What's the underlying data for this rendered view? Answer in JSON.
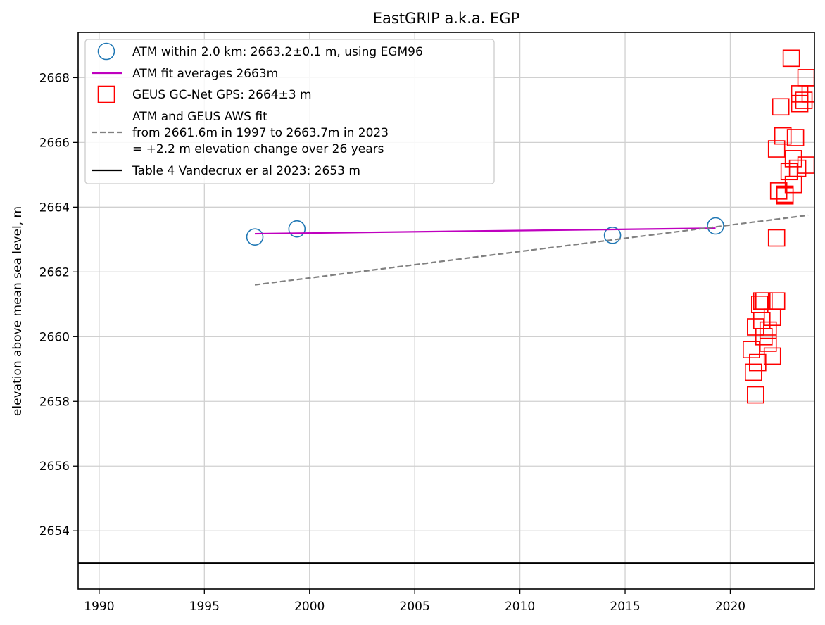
{
  "chart_data": {
    "type": "scatter",
    "title": "EastGRIP a.k.a. EGP",
    "xlabel": "",
    "ylabel": "elevation above mean sea level, m",
    "xlim": [
      1989,
      2024
    ],
    "ylim": [
      2652.2,
      2669.4
    ],
    "xticks": [
      1990,
      1995,
      2000,
      2005,
      2010,
      2015,
      2020
    ],
    "yticks": [
      2654,
      2656,
      2658,
      2660,
      2662,
      2664,
      2666,
      2668
    ],
    "grid": true,
    "legend_position": "upper-left",
    "series": [
      {
        "name": "ATM within 2.0 km: 2663.2±0.1 m, using EGM96",
        "kind": "marker",
        "marker": "circle",
        "color": "#1f77b4",
        "points": [
          [
            1997.4,
            2663.08
          ],
          [
            1999.4,
            2663.33
          ],
          [
            2014.4,
            2663.13
          ],
          [
            2019.3,
            2663.42
          ]
        ]
      },
      {
        "name": "ATM fit averages 2663m",
        "kind": "line",
        "style": "solid",
        "color": "#bf00bf",
        "points": [
          [
            1997.4,
            2663.18
          ],
          [
            2019.3,
            2663.35
          ]
        ]
      },
      {
        "name": "GEUS GC-Net GPS: 2664±3 m",
        "kind": "marker",
        "marker": "square",
        "color": "#ff0000",
        "points": [
          [
            2021.2,
            2658.2
          ],
          [
            2021.1,
            2658.9
          ],
          [
            2021.3,
            2659.2
          ],
          [
            2021.0,
            2659.6
          ],
          [
            2022.0,
            2659.4
          ],
          [
            2021.8,
            2659.8
          ],
          [
            2021.6,
            2660.0
          ],
          [
            2021.2,
            2660.3
          ],
          [
            2021.8,
            2660.2
          ],
          [
            2021.5,
            2660.5
          ],
          [
            2022.0,
            2660.6
          ],
          [
            2021.4,
            2661.0
          ],
          [
            2021.6,
            2661.1
          ],
          [
            2021.5,
            2661.1
          ],
          [
            2022.2,
            2661.1
          ],
          [
            2022.2,
            2663.05
          ],
          [
            2022.6,
            2664.35
          ],
          [
            2022.3,
            2664.5
          ],
          [
            2022.6,
            2664.4
          ],
          [
            2023.0,
            2664.7
          ],
          [
            2022.8,
            2665.1
          ],
          [
            2023.2,
            2665.2
          ],
          [
            2023.6,
            2665.3
          ],
          [
            2023.0,
            2665.5
          ],
          [
            2022.2,
            2665.8
          ],
          [
            2022.5,
            2666.2
          ],
          [
            2023.1,
            2666.15
          ],
          [
            2022.4,
            2667.1
          ],
          [
            2023.3,
            2667.2
          ],
          [
            2023.3,
            2667.5
          ],
          [
            2023.5,
            2667.3
          ],
          [
            2023.8,
            2667.5
          ],
          [
            2023.6,
            2668.0
          ],
          [
            2022.9,
            2668.6
          ]
        ]
      },
      {
        "name": "ATM and GEUS AWS fit\nfrom 2661.6m in 1997 to 2663.7m in 2023\n= +2.2 m elevation change over 26 years",
        "kind": "line",
        "style": "dashed",
        "color": "#808080",
        "points": [
          [
            1997.4,
            2661.6
          ],
          [
            2023.7,
            2663.75
          ]
        ]
      },
      {
        "name": "Table 4 Vandecrux er al 2023: 2653 m",
        "kind": "hline",
        "style": "solid",
        "color": "#000000",
        "y": 2653
      }
    ]
  }
}
